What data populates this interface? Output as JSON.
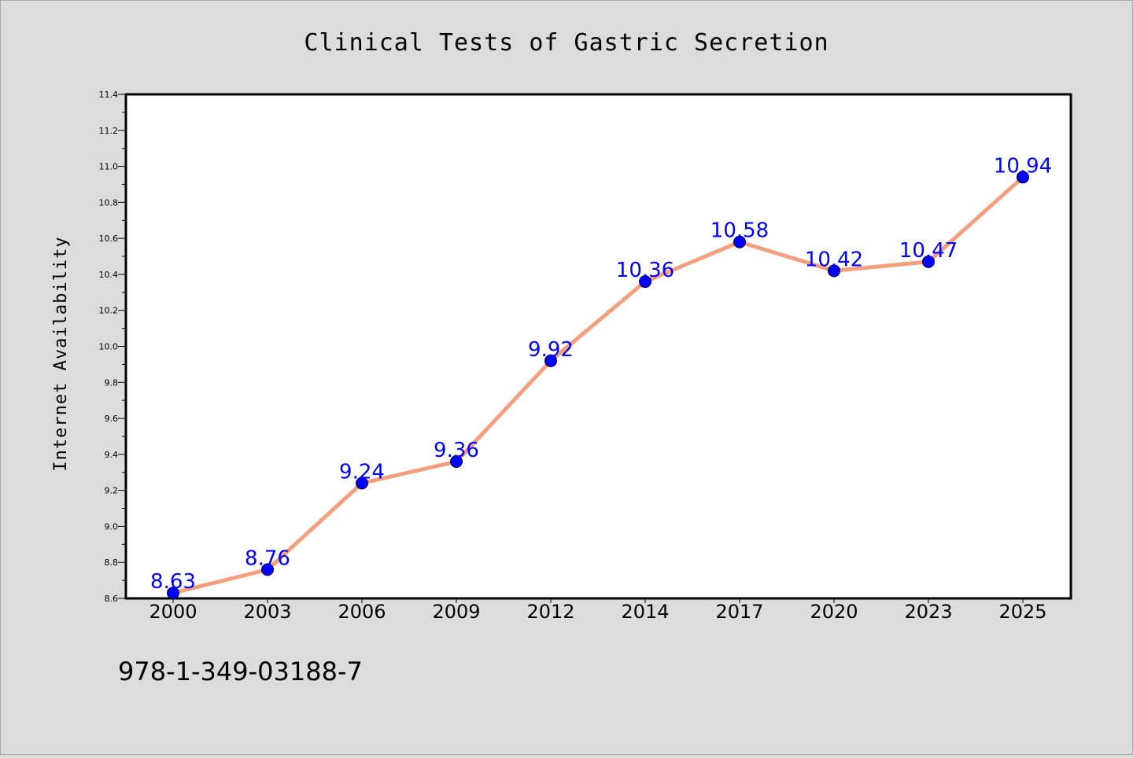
{
  "chart_data": {
    "type": "line",
    "title": "Clinical Tests of Gastric Secretion",
    "xlabel": "",
    "ylabel": "Internet Availability",
    "categories": [
      "2000",
      "2003",
      "2006",
      "2009",
      "2012",
      "2014",
      "2017",
      "2020",
      "2023",
      "2025"
    ],
    "series": [
      {
        "values": [
          8.63,
          8.76,
          9.24,
          9.36,
          9.92,
          10.36,
          10.58,
          10.42,
          10.47,
          10.94
        ],
        "labels": [
          "8.63",
          "8.76",
          "9.24",
          "9.36",
          "9.92",
          "10.36",
          "10.58",
          "10.42",
          "10.47",
          "10.94"
        ],
        "line_color": "#f4a07e",
        "marker_color": "#0000ff"
      }
    ],
    "ylim": [
      8.6,
      11.4
    ],
    "yticks": [
      "8.6",
      "8.8",
      "9.0",
      "9.2",
      "9.4",
      "9.6",
      "9.8",
      "10.0",
      "10.2",
      "10.4",
      "10.6",
      "10.8",
      "11.0",
      "11.2",
      "11.4"
    ],
    "grid": false,
    "legend": "none",
    "colors": {
      "background": "#dcdcdc",
      "plot_background": "#ffffff",
      "label_color": "#0000ff"
    }
  },
  "footer": {
    "isbn": "978-1-349-03188-7"
  }
}
